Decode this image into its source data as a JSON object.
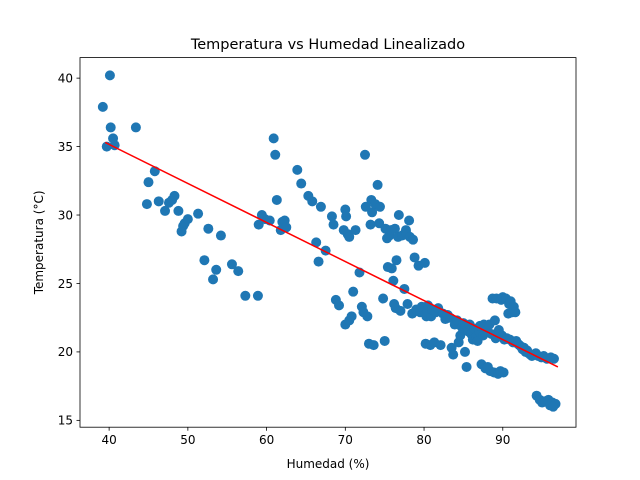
{
  "chart_data": {
    "type": "scatter",
    "title": "Temperatura vs Humedad Linealizado",
    "xlabel": "Humedad (%)",
    "ylabel": "Temperatura (°C)",
    "xlim": [
      36.3,
      99.3
    ],
    "ylim": [
      14.5,
      41.5
    ],
    "xticks": [
      40,
      50,
      60,
      70,
      80,
      90
    ],
    "yticks": [
      15,
      20,
      25,
      30,
      35,
      40
    ],
    "grid": false,
    "colors": {
      "points": "#1f77b4",
      "fit": "#ff0000",
      "axes": "#000000"
    },
    "series": [
      {
        "kind": "scatter",
        "points": [
          [
            39.2,
            37.9
          ],
          [
            39.7,
            35.0
          ],
          [
            40.1,
            40.2
          ],
          [
            40.2,
            36.4
          ],
          [
            40.5,
            35.6
          ],
          [
            40.7,
            35.1
          ],
          [
            43.4,
            36.4
          ],
          [
            44.8,
            30.8
          ],
          [
            45.0,
            32.4
          ],
          [
            45.8,
            33.2
          ],
          [
            46.3,
            31.0
          ],
          [
            47.1,
            30.3
          ],
          [
            47.6,
            30.9
          ],
          [
            48.0,
            31.1
          ],
          [
            48.3,
            31.4
          ],
          [
            48.8,
            30.3
          ],
          [
            49.2,
            28.8
          ],
          [
            49.4,
            29.2
          ],
          [
            49.6,
            29.4
          ],
          [
            50.0,
            29.7
          ],
          [
            51.3,
            30.1
          ],
          [
            52.1,
            26.7
          ],
          [
            52.6,
            29.0
          ],
          [
            53.2,
            25.3
          ],
          [
            53.6,
            26.0
          ],
          [
            54.2,
            28.5
          ],
          [
            55.6,
            26.4
          ],
          [
            56.4,
            25.9
          ],
          [
            57.3,
            24.1
          ],
          [
            58.9,
            24.1
          ],
          [
            59.0,
            29.3
          ],
          [
            59.4,
            30.0
          ],
          [
            59.8,
            29.7
          ],
          [
            60.4,
            29.6
          ],
          [
            60.9,
            35.6
          ],
          [
            61.1,
            34.4
          ],
          [
            61.3,
            31.1
          ],
          [
            61.8,
            28.9
          ],
          [
            62.0,
            29.5
          ],
          [
            62.3,
            29.6
          ],
          [
            62.5,
            29.1
          ],
          [
            63.9,
            33.3
          ],
          [
            64.4,
            32.3
          ],
          [
            65.3,
            31.4
          ],
          [
            65.8,
            31.0
          ],
          [
            66.3,
            28.0
          ],
          [
            66.6,
            26.6
          ],
          [
            66.9,
            30.6
          ],
          [
            67.5,
            27.4
          ],
          [
            68.3,
            29.9
          ],
          [
            68.5,
            29.3
          ],
          [
            68.8,
            23.8
          ],
          [
            69.2,
            23.4
          ],
          [
            69.8,
            28.9
          ],
          [
            70.0,
            30.4
          ],
          [
            70.1,
            29.9
          ],
          [
            70.3,
            28.6
          ],
          [
            70.5,
            28.4
          ],
          [
            70.0,
            22.0
          ],
          [
            70.5,
            22.3
          ],
          [
            70.8,
            22.6
          ],
          [
            71.0,
            24.4
          ],
          [
            71.3,
            28.9
          ],
          [
            71.8,
            25.8
          ],
          [
            72.1,
            23.3
          ],
          [
            72.3,
            22.9
          ],
          [
            72.5,
            34.4
          ],
          [
            72.6,
            30.6
          ],
          [
            72.8,
            22.6
          ],
          [
            73.0,
            20.6
          ],
          [
            73.2,
            29.3
          ],
          [
            73.3,
            31.1
          ],
          [
            73.4,
            30.2
          ],
          [
            73.6,
            20.5
          ],
          [
            73.8,
            30.8
          ],
          [
            74.1,
            32.2
          ],
          [
            74.3,
            29.4
          ],
          [
            74.4,
            30.6
          ],
          [
            74.8,
            23.9
          ],
          [
            75.0,
            20.8
          ],
          [
            75.1,
            29.0
          ],
          [
            75.3,
            28.3
          ],
          [
            75.4,
            26.2
          ],
          [
            75.6,
            28.5
          ],
          [
            75.8,
            28.9
          ],
          [
            75.9,
            26.1
          ],
          [
            76.1,
            25.2
          ],
          [
            76.2,
            23.5
          ],
          [
            76.3,
            29.0
          ],
          [
            76.4,
            23.2
          ],
          [
            76.5,
            26.7
          ],
          [
            76.7,
            28.4
          ],
          [
            76.8,
            30.0
          ],
          [
            77.0,
            23.0
          ],
          [
            77.2,
            28.5
          ],
          [
            77.5,
            24.6
          ],
          [
            77.7,
            28.9
          ],
          [
            77.8,
            28.6
          ],
          [
            77.9,
            23.5
          ],
          [
            78.1,
            29.6
          ],
          [
            78.2,
            28.4
          ],
          [
            78.5,
            22.8
          ],
          [
            78.6,
            28.2
          ],
          [
            78.8,
            26.9
          ],
          [
            79.0,
            23.1
          ],
          [
            79.3,
            26.3
          ],
          [
            79.5,
            22.9
          ],
          [
            79.7,
            23.3
          ],
          [
            80.1,
            26.5
          ],
          [
            80.2,
            20.6
          ],
          [
            80.3,
            22.6
          ],
          [
            80.4,
            22.9
          ],
          [
            80.5,
            23.4
          ],
          [
            80.8,
            20.5
          ],
          [
            80.9,
            22.6
          ],
          [
            81.0,
            23.1
          ],
          [
            81.3,
            20.7
          ],
          [
            81.5,
            22.9
          ],
          [
            81.8,
            23.2
          ],
          [
            82.1,
            20.5
          ],
          [
            82.4,
            22.8
          ],
          [
            82.7,
            22.4
          ],
          [
            83.0,
            22.7
          ],
          [
            83.3,
            22.5
          ],
          [
            83.5,
            20.3
          ],
          [
            83.7,
            19.8
          ],
          [
            83.9,
            22.0
          ],
          [
            84.2,
            22.3
          ],
          [
            84.4,
            20.7
          ],
          [
            84.6,
            21.2
          ],
          [
            84.8,
            21.8
          ],
          [
            85.0,
            22.1
          ],
          [
            85.2,
            20.0
          ],
          [
            85.4,
            18.9
          ],
          [
            85.6,
            21.5
          ],
          [
            85.8,
            22.0
          ],
          [
            86.0,
            21.3
          ],
          [
            86.2,
            20.9
          ],
          [
            86.4,
            21.7
          ],
          [
            86.6,
            21.1
          ],
          [
            86.8,
            20.8
          ],
          [
            87.0,
            21.5
          ],
          [
            87.1,
            21.9
          ],
          [
            87.3,
            19.1
          ],
          [
            87.5,
            21.2
          ],
          [
            87.6,
            22.0
          ],
          [
            87.8,
            18.8
          ],
          [
            88.0,
            21.6
          ],
          [
            88.1,
            18.9
          ],
          [
            88.3,
            22.0
          ],
          [
            88.4,
            18.6
          ],
          [
            88.6,
            21.3
          ],
          [
            88.7,
            23.9
          ],
          [
            88.9,
            18.5
          ],
          [
            89.0,
            22.3
          ],
          [
            89.1,
            21.0
          ],
          [
            89.2,
            23.9
          ],
          [
            89.4,
            18.4
          ],
          [
            89.5,
            21.6
          ],
          [
            89.7,
            18.6
          ],
          [
            89.8,
            23.8
          ],
          [
            89.9,
            21.2
          ],
          [
            90.0,
            24.0
          ],
          [
            90.1,
            18.5
          ],
          [
            90.2,
            20.9
          ],
          [
            90.4,
            23.9
          ],
          [
            90.5,
            21.0
          ],
          [
            90.7,
            22.8
          ],
          [
            90.8,
            23.5
          ],
          [
            90.9,
            20.9
          ],
          [
            91.0,
            23.7
          ],
          [
            91.2,
            22.9
          ],
          [
            91.3,
            20.7
          ],
          [
            91.4,
            23.3
          ],
          [
            91.6,
            22.9
          ],
          [
            91.7,
            20.8
          ],
          [
            91.9,
            20.6
          ],
          [
            92.1,
            20.5
          ],
          [
            92.3,
            20.4
          ],
          [
            92.5,
            20.2
          ],
          [
            92.7,
            20.3
          ],
          [
            92.9,
            20.0
          ],
          [
            93.1,
            20.1
          ],
          [
            93.3,
            19.9
          ],
          [
            93.5,
            19.8
          ],
          [
            93.7,
            19.7
          ],
          [
            94.0,
            19.8
          ],
          [
            94.2,
            19.9
          ],
          [
            94.3,
            16.8
          ],
          [
            94.5,
            19.7
          ],
          [
            94.7,
            16.5
          ],
          [
            94.9,
            19.6
          ],
          [
            95.0,
            16.3
          ],
          [
            95.2,
            19.7
          ],
          [
            95.4,
            16.4
          ],
          [
            95.6,
            19.5
          ],
          [
            95.8,
            16.5
          ],
          [
            96.0,
            16.1
          ],
          [
            96.1,
            19.6
          ],
          [
            96.3,
            16.3
          ],
          [
            96.5,
            19.5
          ],
          [
            96.7,
            16.2
          ],
          [
            96.4,
            16.0
          ]
        ]
      },
      {
        "kind": "line",
        "points": [
          [
            39.5,
            35.3
          ],
          [
            97.0,
            18.9
          ]
        ]
      }
    ]
  }
}
